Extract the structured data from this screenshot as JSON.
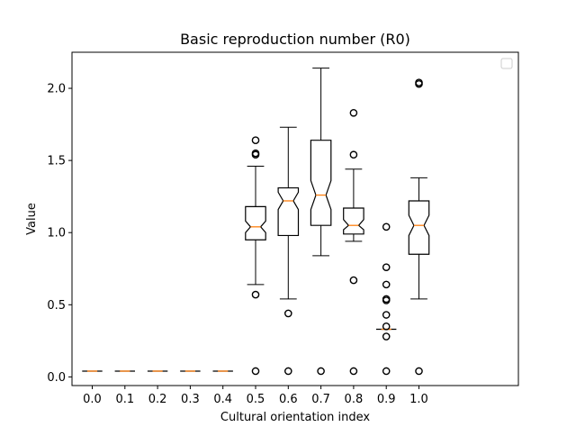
{
  "chart_data": {
    "type": "boxplot",
    "title": "Basic reproduction number (R0)",
    "xlabel": "Cultural orientation index",
    "ylabel": "Value",
    "notched": true,
    "categories": [
      "0.0",
      "0.1",
      "0.2",
      "0.3",
      "0.4",
      "0.5",
      "0.6",
      "0.7",
      "0.8",
      "0.9",
      "1.0"
    ],
    "ylim": [
      -0.06,
      2.25
    ],
    "yticks": [
      "0.0",
      "0.5",
      "1.0",
      "1.5",
      "2.0"
    ],
    "ytick_values": [
      0.0,
      0.5,
      1.0,
      1.5,
      2.0
    ],
    "legend": {
      "placement": "top-right",
      "entries": []
    },
    "grid": false,
    "colors": {
      "box": "#000000",
      "median": "#ff7f0e",
      "flier": "#000000"
    },
    "boxes": [
      {
        "category": "0.0",
        "q1": 0.04,
        "median": 0.04,
        "q3": 0.04,
        "notch_low": 0.04,
        "notch_high": 0.04,
        "whisker_low": 0.04,
        "whisker_high": 0.04,
        "outliers": []
      },
      {
        "category": "0.1",
        "q1": 0.04,
        "median": 0.04,
        "q3": 0.04,
        "notch_low": 0.04,
        "notch_high": 0.04,
        "whisker_low": 0.04,
        "whisker_high": 0.04,
        "outliers": []
      },
      {
        "category": "0.2",
        "q1": 0.04,
        "median": 0.04,
        "q3": 0.04,
        "notch_low": 0.04,
        "notch_high": 0.04,
        "whisker_low": 0.04,
        "whisker_high": 0.04,
        "outliers": []
      },
      {
        "category": "0.3",
        "q1": 0.04,
        "median": 0.04,
        "q3": 0.04,
        "notch_low": 0.04,
        "notch_high": 0.04,
        "whisker_low": 0.04,
        "whisker_high": 0.04,
        "outliers": []
      },
      {
        "category": "0.4",
        "q1": 0.04,
        "median": 0.04,
        "q3": 0.04,
        "notch_low": 0.04,
        "notch_high": 0.04,
        "whisker_low": 0.04,
        "whisker_high": 0.04,
        "outliers": []
      },
      {
        "category": "0.5",
        "q1": 0.95,
        "median": 1.04,
        "q3": 1.18,
        "notch_low": 1.0,
        "notch_high": 1.08,
        "whisker_low": 0.64,
        "whisker_high": 1.46,
        "outliers": [
          1.64,
          1.55,
          1.54,
          0.57,
          0.04
        ]
      },
      {
        "category": "0.6",
        "q1": 0.98,
        "median": 1.22,
        "q3": 1.31,
        "notch_low": 1.16,
        "notch_high": 1.28,
        "whisker_low": 0.54,
        "whisker_high": 1.73,
        "outliers": [
          0.44,
          0.04
        ]
      },
      {
        "category": "0.7",
        "q1": 1.05,
        "median": 1.26,
        "q3": 1.64,
        "notch_low": 1.16,
        "notch_high": 1.36,
        "whisker_low": 0.84,
        "whisker_high": 2.14,
        "outliers": [
          0.04
        ]
      },
      {
        "category": "0.8",
        "q1": 0.99,
        "median": 1.05,
        "q3": 1.17,
        "notch_low": 1.02,
        "notch_high": 1.09,
        "whisker_low": 0.94,
        "whisker_high": 1.44,
        "outliers": [
          1.83,
          1.54,
          0.67,
          0.04
        ]
      },
      {
        "category": "0.9",
        "q1": 0.33,
        "median": 0.33,
        "q3": 0.33,
        "notch_low": 0.33,
        "notch_high": 0.33,
        "whisker_low": 0.33,
        "whisker_high": 0.33,
        "outliers": [
          1.04,
          0.76,
          0.64,
          0.54,
          0.53,
          0.43,
          0.35,
          0.28,
          0.04
        ]
      },
      {
        "category": "1.0",
        "q1": 0.85,
        "median": 1.05,
        "q3": 1.22,
        "notch_low": 0.98,
        "notch_high": 1.12,
        "whisker_low": 0.54,
        "whisker_high": 1.38,
        "outliers": [
          2.04,
          2.03,
          0.04
        ]
      }
    ]
  }
}
